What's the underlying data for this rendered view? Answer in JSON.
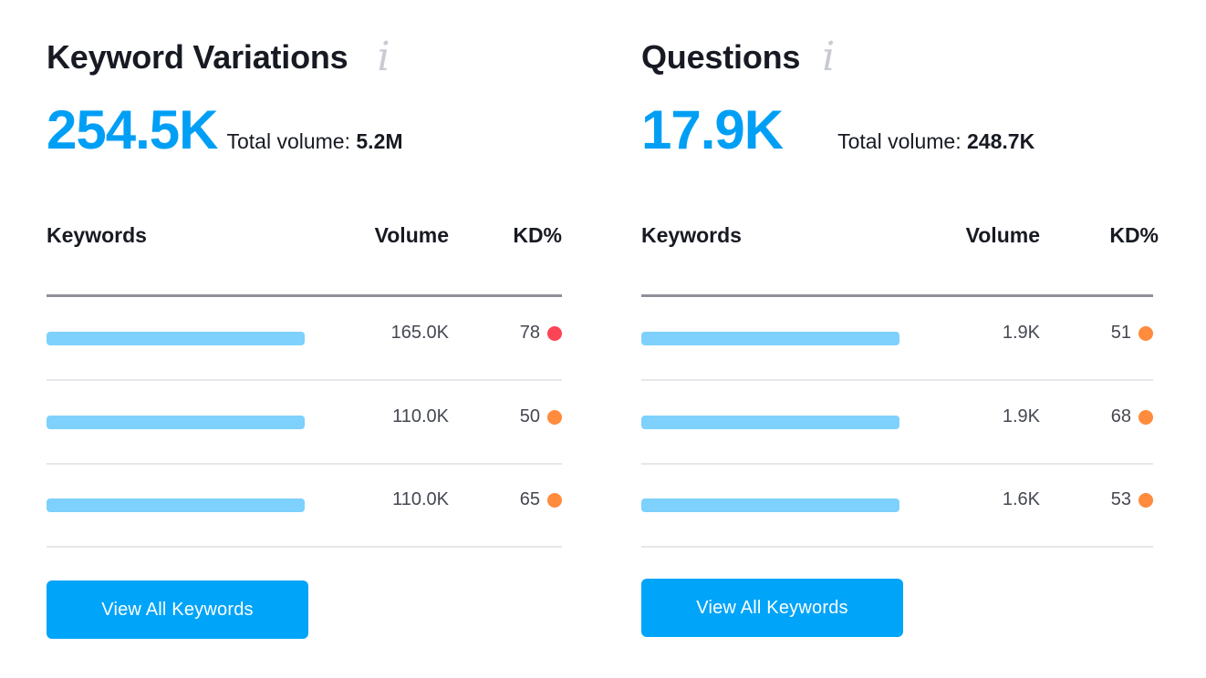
{
  "colors": {
    "accent": "#009ff5",
    "bar": "#7dd1fc",
    "button": "#00a4f8",
    "kd_red": "#fb4455",
    "kd_orange": "#ff8b3d"
  },
  "variations": {
    "title": "Keyword Variations",
    "info_icon": "i",
    "count": "254.5K",
    "total_label": "Total volume: ",
    "total_value": "5.2M",
    "headers": {
      "keywords": "Keywords",
      "volume": "Volume",
      "kd": "KD%"
    },
    "rows": [
      {
        "volume": "165.0K",
        "kd": "78",
        "kd_color": "#fb4455"
      },
      {
        "volume": "110.0K",
        "kd": "50",
        "kd_color": "#ff8b3d"
      },
      {
        "volume": "110.0K",
        "kd": "65",
        "kd_color": "#ff8b3d"
      }
    ],
    "button_label": "View All Keywords"
  },
  "questions": {
    "title": "Questions",
    "info_icon": "i",
    "count": "17.9K",
    "total_label": "Total volume: ",
    "total_value": "248.7K",
    "headers": {
      "keywords": "Keywords",
      "volume": "Volume",
      "kd": "KD%"
    },
    "rows": [
      {
        "volume": "1.9K",
        "kd": "51",
        "kd_color": "#ff8b3d"
      },
      {
        "volume": "1.9K",
        "kd": "68",
        "kd_color": "#ff8b3d"
      },
      {
        "volume": "1.6K",
        "kd": "53",
        "kd_color": "#ff8b3d"
      }
    ],
    "button_label": "View All Keywords"
  }
}
